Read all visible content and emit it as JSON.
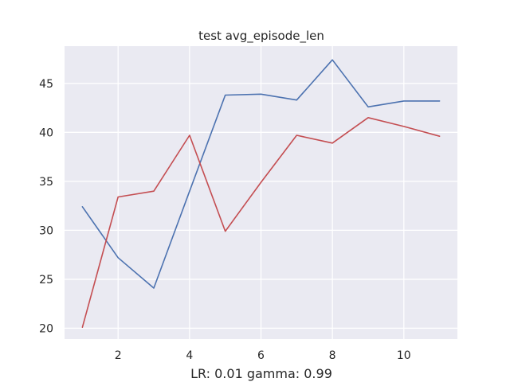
{
  "chart_data": {
    "type": "line",
    "title": "test avg_episode_len",
    "xlabel": "LR: 0.01 gamma: 0.99",
    "ylabel": "",
    "xlim": [
      0.5,
      11.5
    ],
    "ylim": [
      18.9,
      48.8
    ],
    "xticks": [
      2,
      4,
      6,
      8,
      10
    ],
    "yticks": [
      20,
      25,
      30,
      35,
      40,
      45
    ],
    "grid": true,
    "background": "#eaeaf2",
    "grid_color": "#ffffff",
    "x": [
      1,
      2,
      3,
      4,
      5,
      6,
      7,
      8,
      9,
      10,
      11
    ],
    "series": [
      {
        "color": "#4c72b0",
        "values": [
          32.4,
          27.2,
          24.1,
          34.0,
          43.8,
          43.9,
          43.3,
          47.4,
          42.6,
          43.2,
          43.2
        ]
      },
      {
        "color": "#c44e52",
        "values": [
          20.1,
          33.4,
          34.0,
          39.7,
          29.9,
          34.9,
          39.7,
          38.9,
          41.5,
          40.6,
          39.6
        ]
      }
    ]
  }
}
